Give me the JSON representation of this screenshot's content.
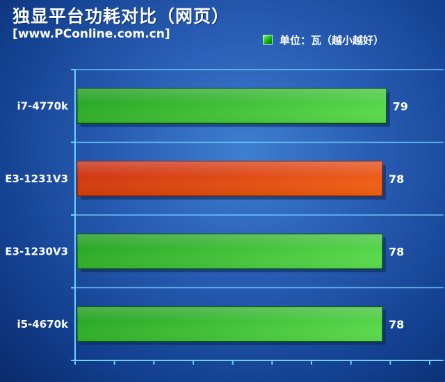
{
  "chart_data": {
    "type": "bar",
    "orientation": "horizontal",
    "title": "独显平台功耗对比（网页）",
    "subtitle": "[www.PConline.com.cn]",
    "legend": {
      "label": "单位：瓦（越小越好）",
      "placement": "top-right"
    },
    "categories": [
      "i7-4770k",
      "E3-1231V3",
      "E3-1230V3",
      "i5-4670k"
    ],
    "values": [
      79,
      78,
      78,
      78
    ],
    "value_labels": [
      "79",
      "78",
      "78",
      "78"
    ],
    "highlight_index": 1,
    "xlim": [
      0,
      90
    ],
    "grid": true,
    "colors": {
      "bar_light": "#66ee55",
      "bar_dark": "#0a8f0a",
      "highlight_light": "#ff6a10",
      "highlight_dark": "#c01c05",
      "value_text": "#ffffff",
      "axis": "#6fd0ff"
    }
  }
}
